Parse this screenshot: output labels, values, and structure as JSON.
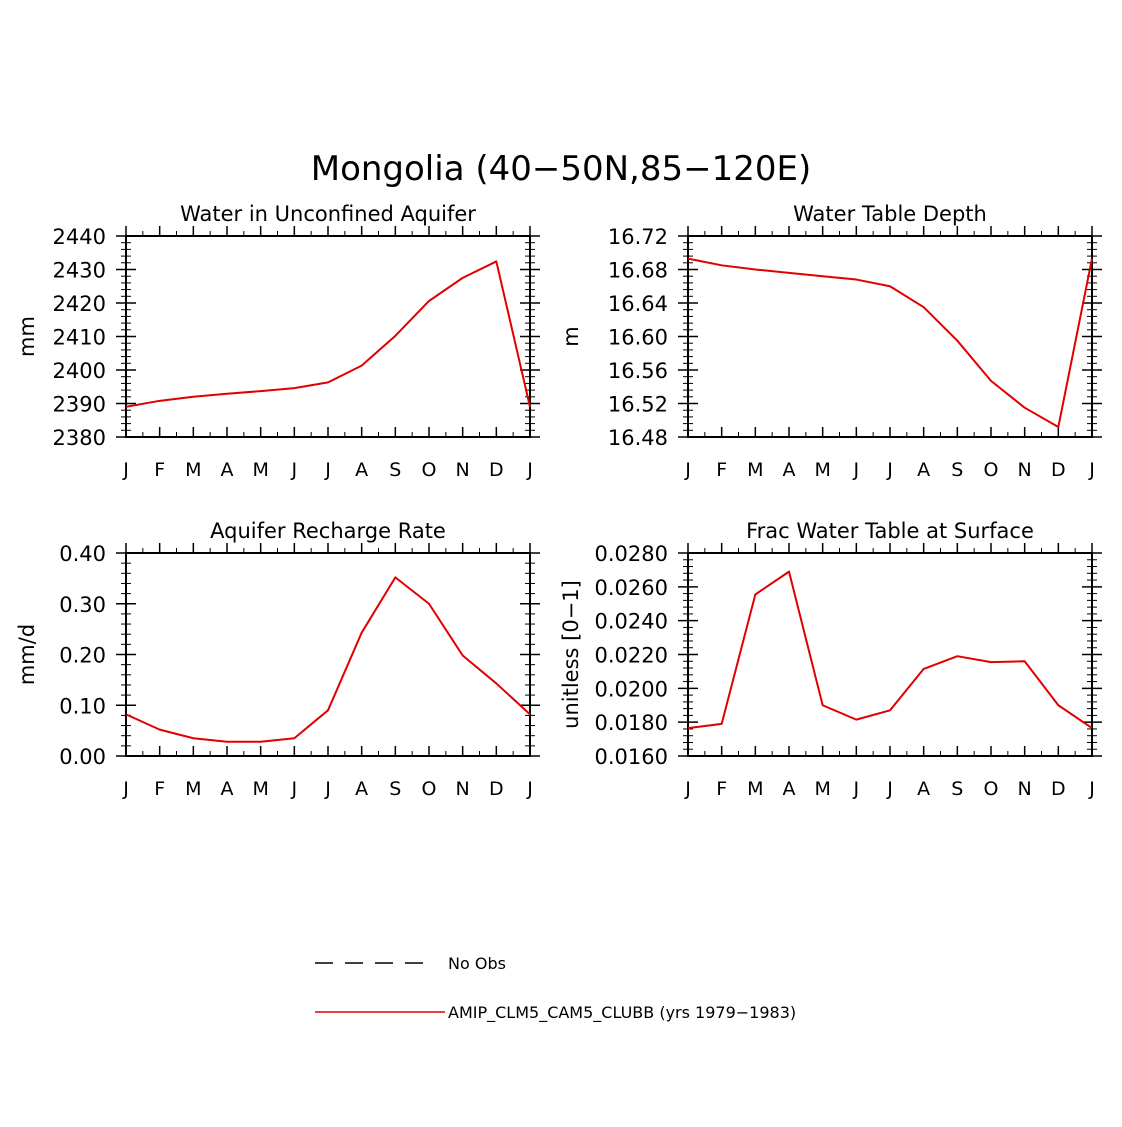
{
  "title": "Mongolia (40−50N,85−120E)",
  "colors": {
    "model": "#e00000",
    "obs": "#000000",
    "axis": "#000000"
  },
  "months": [
    "J",
    "F",
    "M",
    "A",
    "M",
    "J",
    "J",
    "A",
    "S",
    "O",
    "N",
    "D",
    "J"
  ],
  "chart_data": [
    {
      "type": "line",
      "title": "Water in Unconfined Aquifer",
      "xlabel": "",
      "ylabel": "mm",
      "ylim": [
        2380,
        2440
      ],
      "yticks": [
        "2380",
        "2390",
        "2400",
        "2410",
        "2420",
        "2430",
        "2440"
      ],
      "x": [
        "J",
        "F",
        "M",
        "A",
        "M",
        "J",
        "J",
        "A",
        "S",
        "O",
        "N",
        "D",
        "J"
      ],
      "series": [
        {
          "name": "AMIP_CLM5_CAM5_CLUBB (yrs 1979−1983)",
          "values": [
            2389.0,
            2390.8,
            2392.0,
            2392.9,
            2393.7,
            2394.6,
            2396.3,
            2401.3,
            2410.2,
            2420.6,
            2427.5,
            2432.4,
            2389.0
          ]
        }
      ]
    },
    {
      "type": "line",
      "title": "Water Table Depth",
      "xlabel": "",
      "ylabel": "m",
      "ylim": [
        16.48,
        16.72
      ],
      "yticks": [
        "16.48",
        "16.52",
        "16.56",
        "16.60",
        "16.64",
        "16.68",
        "16.72"
      ],
      "x": [
        "J",
        "F",
        "M",
        "A",
        "M",
        "J",
        "J",
        "A",
        "S",
        "O",
        "N",
        "D",
        "J"
      ],
      "series": [
        {
          "name": "AMIP_CLM5_CAM5_CLUBB (yrs 1979−1983)",
          "values": [
            16.693,
            16.685,
            16.68,
            16.676,
            16.672,
            16.668,
            16.66,
            16.635,
            16.595,
            16.547,
            16.515,
            16.492,
            16.693
          ]
        }
      ]
    },
    {
      "type": "line",
      "title": "Aquifer Recharge Rate",
      "xlabel": "",
      "ylabel": "mm/d",
      "ylim": [
        0.0,
        0.4
      ],
      "yticks": [
        "0.00",
        "0.10",
        "0.20",
        "0.30",
        "0.40"
      ],
      "x": [
        "J",
        "F",
        "M",
        "A",
        "M",
        "J",
        "J",
        "A",
        "S",
        "O",
        "N",
        "D",
        "J"
      ],
      "series": [
        {
          "name": "AMIP_CLM5_CAM5_CLUBB (yrs 1979−1983)",
          "values": [
            0.082,
            0.052,
            0.035,
            0.028,
            0.028,
            0.035,
            0.09,
            0.243,
            0.352,
            0.3,
            0.198,
            0.143,
            0.082
          ]
        }
      ]
    },
    {
      "type": "line",
      "title": "Frac Water Table at Surface",
      "xlabel": "",
      "ylabel": "unitless [0−1]",
      "ylim": [
        0.016,
        0.028
      ],
      "yticks": [
        "0.0160",
        "0.0180",
        "0.0200",
        "0.0220",
        "0.0240",
        "0.0260",
        "0.0280"
      ],
      "x": [
        "J",
        "F",
        "M",
        "A",
        "M",
        "J",
        "J",
        "A",
        "S",
        "O",
        "N",
        "D",
        "J"
      ],
      "series": [
        {
          "name": "AMIP_CLM5_CAM5_CLUBB (yrs 1979−1983)",
          "values": [
            0.01765,
            0.0179,
            0.02555,
            0.0269,
            0.019,
            0.01815,
            0.0187,
            0.02115,
            0.0219,
            0.02155,
            0.0216,
            0.019,
            0.01765
          ]
        }
      ]
    }
  ],
  "legend": {
    "obs_label": "No Obs",
    "model_label": "AMIP_CLM5_CAM5_CLUBB (yrs 1979−1983)"
  }
}
